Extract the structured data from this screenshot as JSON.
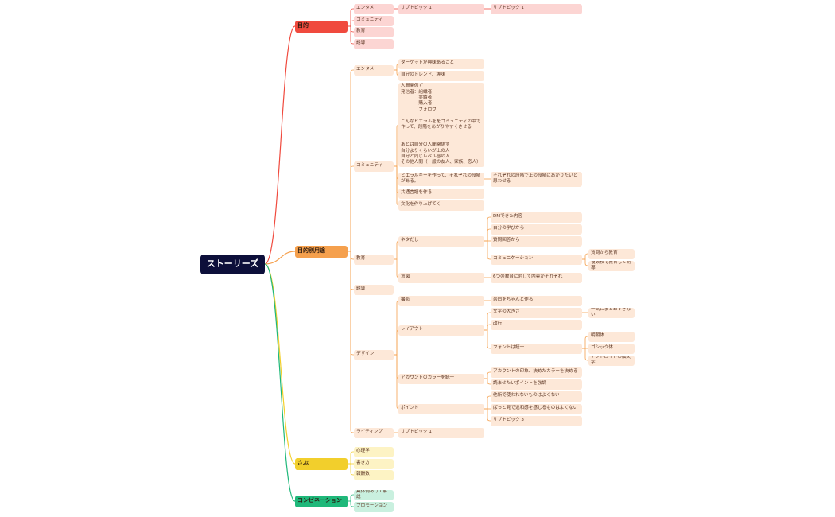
{
  "root": {
    "label": "ストーリーズ",
    "children": [
      {
        "label": "目的",
        "children": [
          {
            "label": "エンタメ",
            "children": [
              {
                "label": "サブトピック 1",
                "children": [
                  {
                    "label": "サブトピック 1"
                  }
                ]
              }
            ]
          },
          {
            "label": "コミュニティ"
          },
          {
            "label": "教育"
          },
          {
            "label": "誘導"
          }
        ]
      },
      {
        "label": "目的別用途",
        "children": [
          {
            "label": "エンタメ",
            "children": [
              {
                "label": "ターゲットが興味あること"
              },
              {
                "label": "自分のトレンド、趣味"
              }
            ]
          },
          {
            "label": "コミュニティ",
            "children": [
              {
                "label": "人間関係ず\n発信者：組織者\n　　　　実績者\n　　　　購入者\n　　　　フォロワ\n\nこんなヒエラルををコミュニティの中で作って、段階をあがりやすくさせる\n\n\nあとは自分の人間関係ず\n自分よりくらいが上の人\n自分と同じレベル感の人\nその他人間（一般の友人、家族、恋人）"
              },
              {
                "label": "ヒエラルキーを作って、それぞれの段階がある。",
                "children": [
                  {
                    "label": "それぞれの段階で上の段階にあがりたいと思わせる"
                  }
                ]
              },
              {
                "label": "共通言語を作る"
              },
              {
                "label": "文化を作り上げてく"
              }
            ]
          },
          {
            "label": "教育",
            "children": [
              {
                "label": "ネタだし",
                "children": [
                  {
                    "label": "DMできた内容"
                  },
                  {
                    "label": "自分の学びから"
                  },
                  {
                    "label": "質問回答から"
                  },
                  {
                    "label": "コミュニケーション",
                    "children": [
                      {
                        "label": "質問から教育"
                      },
                      {
                        "label": "複数枚で教育して誘導"
                      }
                    ]
                  }
                ]
              },
              {
                "label": "意図",
                "children": [
                  {
                    "label": "6つの教育に対して内容がそれぞれ"
                  }
                ]
              }
            ]
          },
          {
            "label": "誘導"
          },
          {
            "label": "デザイン",
            "children": [
              {
                "label": "撮影",
                "children": [
                  {
                    "label": "余白をちゃんと作る"
                  }
                ]
              },
              {
                "label": "レイアウト",
                "children": [
                  {
                    "label": "文字の大きさ",
                    "children": [
                      {
                        "label": "一気にまとめすぎない"
                      }
                    ]
                  },
                  {
                    "label": "改行"
                  },
                  {
                    "label": "フォントは統一",
                    "children": [
                      {
                        "label": "明朝体"
                      },
                      {
                        "label": "ゴシック体"
                      },
                      {
                        "label": "アンドロイドの細文字"
                      }
                    ]
                  }
                ]
              },
              {
                "label": "アカウントのカラーを統一",
                "children": [
                  {
                    "label": "アカウントの印象、決めたカラーを決める"
                  },
                  {
                    "label": "読ませたいポイントを強調"
                  }
                ]
              },
              {
                "label": "ポイント",
                "children": [
                  {
                    "label": "他所で使われないものはよくない"
                  },
                  {
                    "label": "ぱっと見で違和感を感じるものはよくない"
                  },
                  {
                    "label": "サブトピック 3"
                  }
                ]
              }
            ]
          },
          {
            "label": "ライティング",
            "children": [
              {
                "label": "サブトピック 1"
              }
            ]
          }
        ]
      },
      {
        "label": "さぶ",
        "children": [
          {
            "label": "心理学"
          },
          {
            "label": "書き方"
          },
          {
            "label": "報酬数"
          }
        ]
      },
      {
        "label": "コンビネーション",
        "children": [
          {
            "label": "具体例あげて解説"
          },
          {
            "label": "プロモーション"
          }
        ]
      }
    ]
  }
}
